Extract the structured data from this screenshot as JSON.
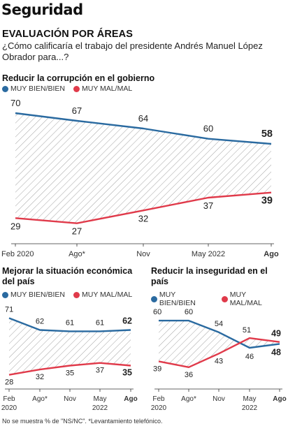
{
  "page": {
    "section_title": "Seguridad",
    "heading": "EVALUACIÓN POR ÁREAS",
    "question": "¿Cómo calificaría el trabajo del presidente Andrés Manuel López Obrador para...?",
    "footnote": "No se muestra % de \"NS/NC\". *Levantamiento telefónico."
  },
  "legend": {
    "good": "MUY BIEN/BIEN",
    "bad": "MUY MAL/MAL"
  },
  "colors": {
    "good": "#2a6aa0",
    "bad": "#e03a4a",
    "hatch": "#9a9a9a",
    "axis": "#333333"
  },
  "chart_data": [
    {
      "type": "line",
      "title": "Reducir la corrupción en el gobierno",
      "categories": [
        "Feb 2020",
        "Ago*",
        "Nov",
        "May 2022",
        "Ago"
      ],
      "series": [
        {
          "name": "MUY BIEN/BIEN",
          "color": "#2a6aa0",
          "values": [
            70,
            67,
            64,
            60,
            58
          ]
        },
        {
          "name": "MUY MAL/MAL",
          "color": "#e03a4a",
          "values": [
            29,
            27,
            32,
            37,
            39
          ]
        }
      ],
      "ylim": [
        22,
        76
      ],
      "grid": false,
      "legend": "top-left"
    },
    {
      "type": "line",
      "title": "Mejorar la situación económica del país",
      "categories": [
        "Feb 2020",
        "Ago*",
        "Nov",
        "May 2022",
        "Ago"
      ],
      "series": [
        {
          "name": "MUY BIEN/BIEN",
          "color": "#2a6aa0",
          "values": [
            71,
            62,
            61,
            61,
            62
          ]
        },
        {
          "name": "MUY MAL/MAL",
          "color": "#e03a4a",
          "values": [
            28,
            32,
            35,
            37,
            35
          ]
        }
      ],
      "ylim": [
        22,
        75
      ],
      "grid": false,
      "legend": "top-left"
    },
    {
      "type": "line",
      "title": "Reducir la inseguridad en el país",
      "categories": [
        "Feb 2020",
        "Ago*",
        "Nov",
        "May 2022",
        "Ago"
      ],
      "series": [
        {
          "name": "MUY BIEN/BIEN",
          "color": "#2a6aa0",
          "values": [
            60,
            60,
            54,
            46,
            48
          ]
        },
        {
          "name": "MUY MAL/MAL",
          "color": "#e03a4a",
          "values": [
            39,
            36,
            43,
            51,
            49
          ]
        }
      ],
      "ylim": [
        28,
        64
      ],
      "grid": false,
      "legend": "top-left"
    }
  ]
}
